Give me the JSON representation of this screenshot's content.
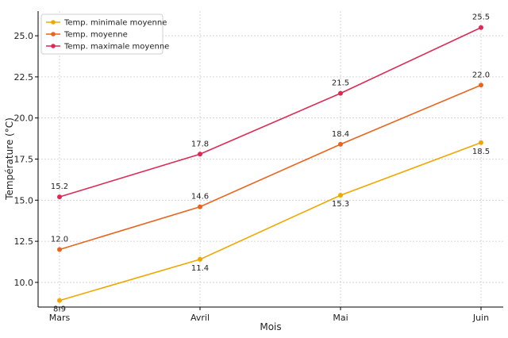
{
  "chart_data": {
    "type": "line",
    "title": "",
    "xlabel": "Mois",
    "ylabel": "Température (°C)",
    "categories": [
      "Mars",
      "Avril",
      "Mai",
      "Juin"
    ],
    "ylim": [
      8.5,
      26.5
    ],
    "yticks": [
      "10.0",
      "12.5",
      "15.0",
      "17.5",
      "20.0",
      "22.5",
      "25.0"
    ],
    "grid": true,
    "legend_position": "top-left",
    "series": [
      {
        "name": "Temp. minimale moyenne",
        "color": "#f0a800",
        "values": [
          8.9,
          11.4,
          15.3,
          18.5
        ],
        "labels": [
          "8.9",
          "11.4",
          "15.3",
          "18.5"
        ],
        "label_position": "below"
      },
      {
        "name": "Temp. moyenne",
        "color": "#e8651d",
        "values": [
          12.0,
          14.6,
          18.4,
          22.0
        ],
        "labels": [
          "12.0",
          "14.6",
          "18.4",
          "22.0"
        ],
        "label_position": "above"
      },
      {
        "name": "Temp. maximale moyenne",
        "color": "#dc2a55",
        "values": [
          15.2,
          17.8,
          21.5,
          25.5
        ],
        "labels": [
          "15.2",
          "17.8",
          "21.5",
          "25.5"
        ],
        "label_position": "above"
      }
    ]
  }
}
